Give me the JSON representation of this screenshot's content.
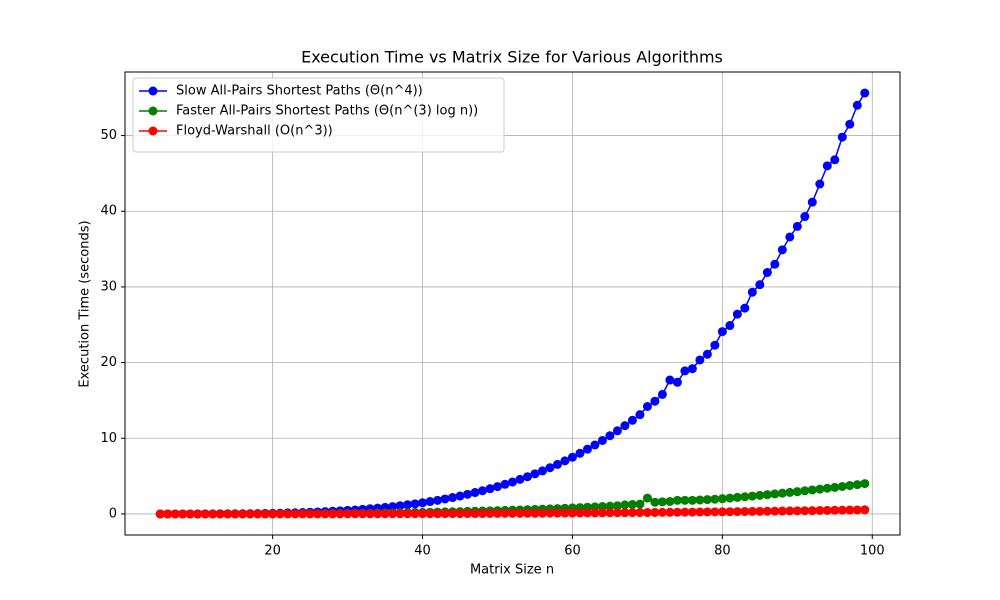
{
  "chart_data": {
    "type": "line",
    "title": "Execution Time vs Matrix Size for Various Algorithms",
    "xlabel": "Matrix Size n",
    "ylabel": "Execution Time (seconds)",
    "x": [
      5,
      6,
      7,
      8,
      9,
      10,
      11,
      12,
      13,
      14,
      15,
      16,
      17,
      18,
      19,
      20,
      21,
      22,
      23,
      24,
      25,
      26,
      27,
      28,
      29,
      30,
      31,
      32,
      33,
      34,
      35,
      36,
      37,
      38,
      39,
      40,
      41,
      42,
      43,
      44,
      45,
      46,
      47,
      48,
      49,
      50,
      51,
      52,
      53,
      54,
      55,
      56,
      57,
      58,
      59,
      60,
      61,
      62,
      63,
      64,
      65,
      66,
      67,
      68,
      69,
      70,
      71,
      72,
      73,
      74,
      75,
      76,
      77,
      78,
      79,
      80,
      81,
      82,
      83,
      84,
      85,
      86,
      87,
      88,
      89,
      90,
      91,
      92,
      93,
      94,
      95,
      96,
      97,
      98,
      99
    ],
    "series": [
      {
        "name": "Slow All-Pairs Shortest Paths (Θ(n^4))",
        "color": "#0000ff",
        "values": [
          0,
          0,
          0,
          0,
          0,
          0.01,
          0.01,
          0.01,
          0.02,
          0.02,
          0.03,
          0.04,
          0.05,
          0.06,
          0.08,
          0.09,
          0.11,
          0.14,
          0.16,
          0.19,
          0.23,
          0.26,
          0.31,
          0.36,
          0.41,
          0.47,
          0.53,
          0.61,
          0.69,
          0.77,
          0.87,
          0.97,
          1.09,
          1.21,
          1.34,
          1.48,
          1.64,
          1.8,
          1.98,
          2.17,
          2.37,
          2.59,
          2.83,
          3.07,
          3.34,
          3.62,
          3.92,
          4.23,
          4.57,
          4.92,
          5.3,
          5.69,
          6.11,
          6.55,
          7.02,
          7.5,
          8.02,
          8.56,
          9.12,
          9.71,
          10.34,
          10.99,
          11.67,
          12.38,
          13.12,
          14.2,
          14.9,
          15.8,
          17.7,
          17.4,
          18.9,
          19.2,
          20.35,
          21.1,
          22.3,
          24.1,
          24.9,
          26.4,
          27.2,
          29.3,
          30.3,
          31.9,
          33.0,
          34.9,
          36.6,
          38.0,
          39.3,
          41.2,
          43.6,
          46.0,
          46.8,
          49.8,
          51.5,
          54.0,
          55.62
        ]
      },
      {
        "name": "Faster All-Pairs Shortest Paths (Θ(n^(3) log n))",
        "color": "#008000",
        "values": [
          0,
          0,
          0,
          0,
          0,
          0,
          0,
          0,
          0.01,
          0.01,
          0.01,
          0.01,
          0.01,
          0.02,
          0.02,
          0.02,
          0.03,
          0.03,
          0.03,
          0.04,
          0.05,
          0.05,
          0.06,
          0.07,
          0.07,
          0.08,
          0.09,
          0.1,
          0.11,
          0.12,
          0.14,
          0.15,
          0.16,
          0.18,
          0.2,
          0.21,
          0.23,
          0.25,
          0.27,
          0.29,
          0.31,
          0.34,
          0.36,
          0.39,
          0.41,
          0.44,
          0.47,
          0.5,
          0.53,
          0.57,
          0.6,
          0.64,
          0.67,
          0.71,
          0.75,
          0.8,
          0.84,
          0.89,
          0.93,
          0.98,
          1.03,
          1.08,
          1.2,
          1.25,
          1.3,
          2.1,
          1.55,
          1.6,
          1.65,
          1.8,
          1.8,
          1.8,
          1.85,
          1.9,
          1.95,
          2.02,
          2.1,
          2.19,
          2.27,
          2.36,
          2.46,
          2.55,
          2.65,
          2.75,
          2.85,
          2.95,
          3.06,
          3.17,
          3.28,
          3.4,
          3.51,
          3.63,
          3.76,
          3.88,
          4.01
        ]
      },
      {
        "name": "Floyd-Warshall (O(n^3))",
        "color": "#ff0000",
        "values": [
          0,
          0,
          0,
          0,
          0,
          0,
          0,
          0,
          0,
          0,
          0,
          0,
          0,
          0,
          0,
          0,
          0.01,
          0.01,
          0.01,
          0.01,
          0.01,
          0.01,
          0.01,
          0.01,
          0.01,
          0.02,
          0.02,
          0.02,
          0.02,
          0.02,
          0.02,
          0.03,
          0.03,
          0.03,
          0.03,
          0.04,
          0.04,
          0.04,
          0.05,
          0.05,
          0.05,
          0.06,
          0.06,
          0.06,
          0.07,
          0.07,
          0.08,
          0.08,
          0.08,
          0.09,
          0.09,
          0.1,
          0.11,
          0.11,
          0.12,
          0.12,
          0.13,
          0.14,
          0.14,
          0.15,
          0.16,
          0.16,
          0.17,
          0.18,
          0.19,
          0.19,
          0.2,
          0.21,
          0.22,
          0.23,
          0.24,
          0.25,
          0.26,
          0.27,
          0.28,
          0.29,
          0.3,
          0.31,
          0.32,
          0.34,
          0.35,
          0.36,
          0.37,
          0.39,
          0.4,
          0.41,
          0.43,
          0.44,
          0.46,
          0.47,
          0.49,
          0.5,
          0.52,
          0.53,
          0.55
        ]
      }
    ],
    "xlim": [
      0.3,
      103.7
    ],
    "xticks": [
      20,
      40,
      60,
      80,
      100
    ],
    "ylim": [
      -2.78,
      58.4
    ],
    "yticks": [
      0,
      10,
      20,
      30,
      40,
      50
    ],
    "grid": true,
    "legend": "upper left"
  }
}
